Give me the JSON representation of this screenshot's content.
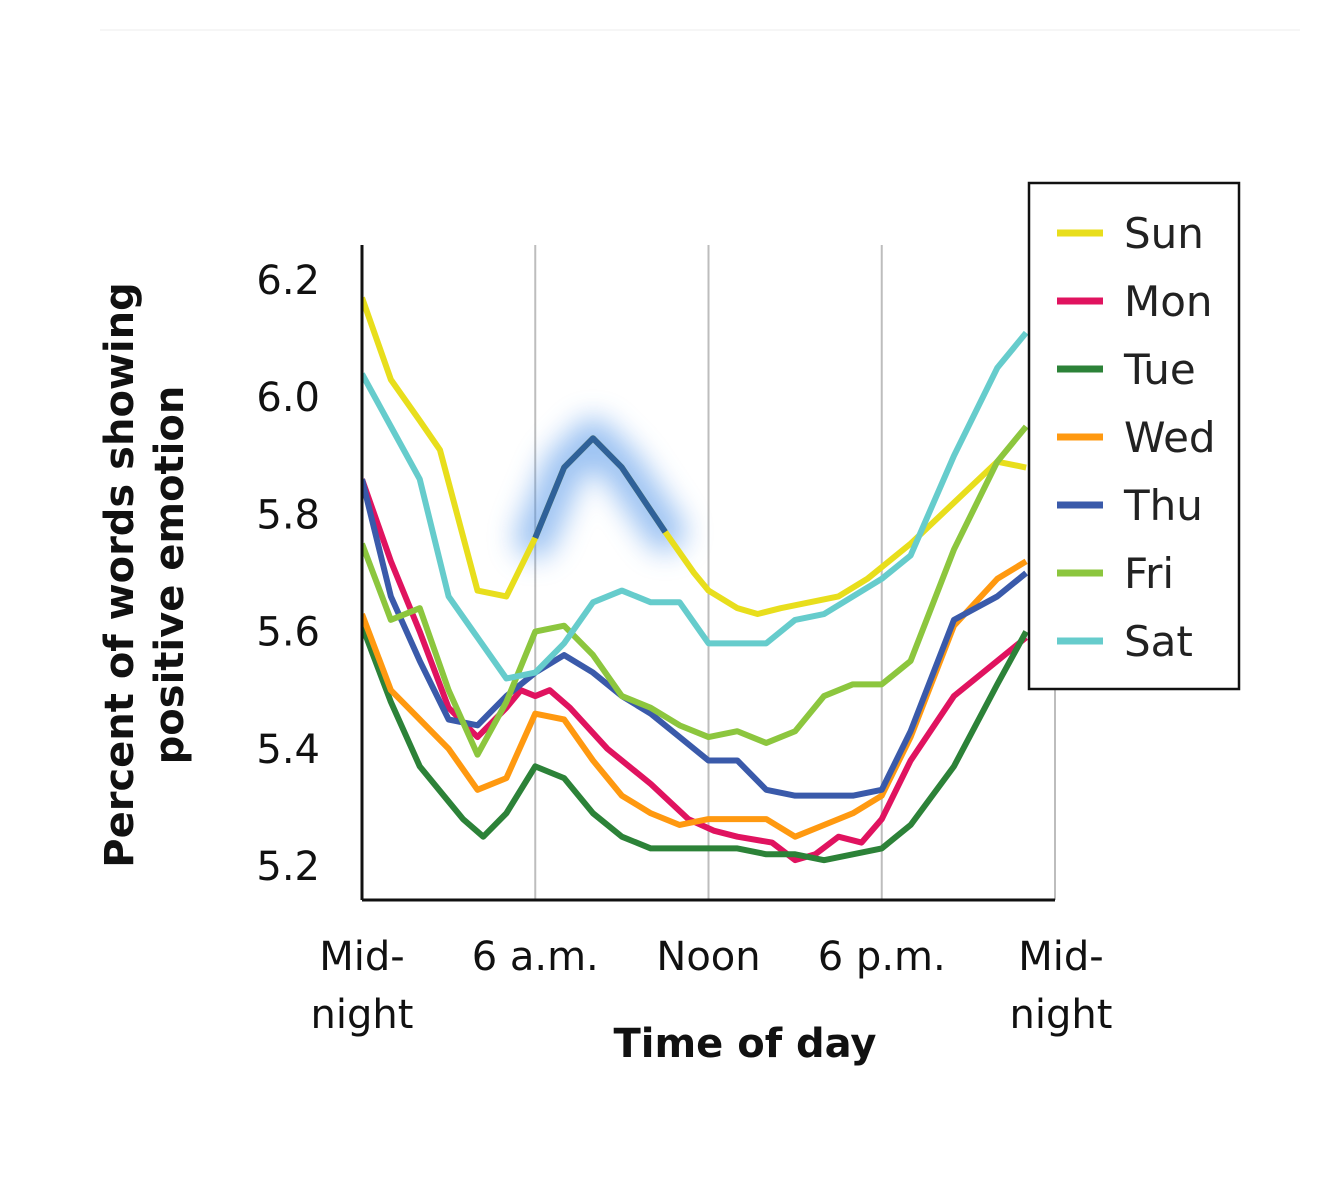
{
  "chart_data": {
    "type": "line",
    "title": "",
    "xlabel": "Time of day",
    "ylabel": "Percent of words showing positive emotion",
    "xlim": [
      0,
      24
    ],
    "ylim": [
      5.15,
      6.25
    ],
    "x_ticks": [
      {
        "value": 0,
        "label": "Mid-\nnight"
      },
      {
        "value": 6,
        "label": "6 a.m."
      },
      {
        "value": 12,
        "label": "Noon"
      },
      {
        "value": 18,
        "label": "6 p.m."
      },
      {
        "value": 24,
        "label": "Mid-\nnight"
      }
    ],
    "y_ticks": [
      5.2,
      5.4,
      5.6,
      5.8,
      6.0,
      6.2
    ],
    "y_tick_labels": [
      "5.2",
      "5.4",
      "5.6",
      "5.8",
      "6.0",
      "6.2"
    ],
    "grid": "vertical",
    "legend_position": "top-right",
    "highlight": {
      "series": "Sun",
      "x_range": [
        6.0,
        10.5
      ],
      "color": "#2f6199",
      "glow": "#4a90e8"
    },
    "series": [
      {
        "name": "Sun",
        "color": "#e8de1c",
        "x": [
          0,
          1,
          2,
          2.7,
          4,
          5,
          6,
          7,
          8,
          9,
          10.5,
          11.5,
          12,
          13,
          13.7,
          14.5,
          15.5,
          16.5,
          17.5,
          19,
          20.5,
          22,
          23
        ],
        "y": [
          6.17,
          6.03,
          5.96,
          5.91,
          5.67,
          5.66,
          5.76,
          5.88,
          5.93,
          5.88,
          5.77,
          5.7,
          5.67,
          5.64,
          5.63,
          5.64,
          5.65,
          5.66,
          5.69,
          5.75,
          5.82,
          5.89,
          5.88
        ]
      },
      {
        "name": "Mon",
        "color": "#e0135f",
        "x": [
          0,
          1,
          2,
          3,
          4,
          5,
          5.5,
          6,
          6.5,
          7.2,
          8.5,
          10,
          11.3,
          12.2,
          13,
          14.2,
          15,
          15.7,
          16.5,
          17.3,
          18,
          19,
          20.5,
          22,
          23
        ],
        "y": [
          5.86,
          5.72,
          5.6,
          5.47,
          5.42,
          5.47,
          5.5,
          5.49,
          5.5,
          5.47,
          5.4,
          5.34,
          5.28,
          5.26,
          5.25,
          5.24,
          5.21,
          5.22,
          5.25,
          5.24,
          5.28,
          5.38,
          5.49,
          5.55,
          5.59
        ]
      },
      {
        "name": "Tue",
        "color": "#2c8238",
        "x": [
          0,
          1,
          2,
          3,
          3.5,
          4.2,
          5,
          6,
          7,
          8,
          9,
          10,
          11,
          12,
          13,
          14,
          15,
          16,
          17,
          18,
          19,
          20.5,
          22,
          23
        ],
        "y": [
          5.61,
          5.48,
          5.37,
          5.31,
          5.28,
          5.25,
          5.29,
          5.37,
          5.35,
          5.29,
          5.25,
          5.23,
          5.23,
          5.23,
          5.23,
          5.22,
          5.22,
          5.21,
          5.22,
          5.23,
          5.27,
          5.37,
          5.51,
          5.6
        ]
      },
      {
        "name": "Wed",
        "color": "#ff9910",
        "x": [
          0,
          1,
          2,
          3,
          4,
          5,
          6,
          7,
          8,
          9,
          10,
          11,
          12,
          13,
          14,
          15,
          16,
          17,
          18,
          19,
          20.5,
          22,
          23
        ],
        "y": [
          5.63,
          5.5,
          5.45,
          5.4,
          5.33,
          5.35,
          5.46,
          5.45,
          5.38,
          5.32,
          5.29,
          5.27,
          5.28,
          5.28,
          5.28,
          5.25,
          5.27,
          5.29,
          5.32,
          5.42,
          5.61,
          5.69,
          5.72
        ]
      },
      {
        "name": "Thu",
        "color": "#3a5aaa",
        "x": [
          0,
          1,
          2,
          3,
          4,
          5,
          6,
          7,
          8,
          9,
          10,
          11,
          12,
          13,
          14,
          15,
          16,
          17,
          18,
          19,
          20.5,
          22,
          23
        ],
        "y": [
          5.86,
          5.66,
          5.55,
          5.45,
          5.44,
          5.49,
          5.53,
          5.56,
          5.53,
          5.49,
          5.46,
          5.42,
          5.38,
          5.38,
          5.33,
          5.32,
          5.32,
          5.32,
          5.33,
          5.43,
          5.62,
          5.66,
          5.7
        ]
      },
      {
        "name": "Fri",
        "color": "#8cc63e",
        "x": [
          0,
          1,
          2,
          3,
          4,
          5,
          6,
          7,
          8,
          9,
          10,
          11,
          12,
          13,
          14,
          15,
          16,
          17,
          18,
          19,
          20.5,
          22,
          23
        ],
        "y": [
          5.75,
          5.62,
          5.64,
          5.5,
          5.39,
          5.48,
          5.6,
          5.61,
          5.56,
          5.49,
          5.47,
          5.44,
          5.42,
          5.43,
          5.41,
          5.43,
          5.49,
          5.51,
          5.51,
          5.55,
          5.74,
          5.89,
          5.95
        ]
      },
      {
        "name": "Sat",
        "color": "#66cccc",
        "x": [
          0,
          1,
          2,
          3,
          4,
          5,
          6,
          7,
          8,
          9,
          10,
          11,
          12,
          13,
          14,
          15,
          16,
          17,
          18,
          19,
          20.5,
          22,
          23
        ],
        "y": [
          6.04,
          5.95,
          5.86,
          5.66,
          5.59,
          5.52,
          5.53,
          5.58,
          5.65,
          5.67,
          5.65,
          5.65,
          5.58,
          5.58,
          5.58,
          5.62,
          5.63,
          5.66,
          5.69,
          5.73,
          5.9,
          6.05,
          6.11
        ]
      }
    ]
  }
}
